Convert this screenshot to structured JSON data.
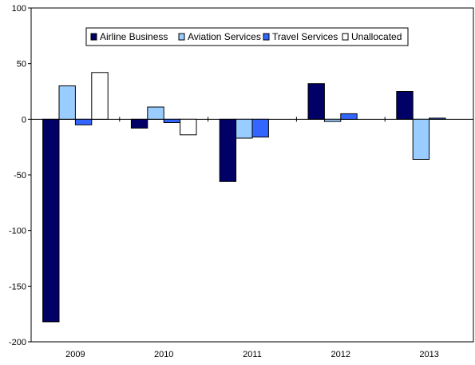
{
  "chart_data": {
    "type": "bar",
    "categories": [
      "2009",
      "2010",
      "2011",
      "2012",
      "2013"
    ],
    "series": [
      {
        "name": "Airline Business",
        "color": "#000066",
        "values": [
          -182,
          -8,
          -56,
          32,
          25
        ]
      },
      {
        "name": "Aviation Services",
        "color": "#99CCFF",
        "values": [
          30,
          11,
          -17,
          -2,
          -36
        ]
      },
      {
        "name": "Travel Services",
        "color": "#3366FF",
        "values": [
          -5,
          -3,
          -16,
          5,
          1
        ]
      },
      {
        "name": "Unallocated",
        "color": "#FFFFFF",
        "values": [
          42,
          -14,
          0,
          0,
          0
        ]
      }
    ],
    "ylim": [
      -200,
      100
    ],
    "yticks": [
      100,
      50,
      0,
      -50,
      -100,
      -150,
      -200
    ],
    "title": "",
    "xlabel": "",
    "ylabel": "",
    "legend_position": "top-center",
    "grid": false
  }
}
